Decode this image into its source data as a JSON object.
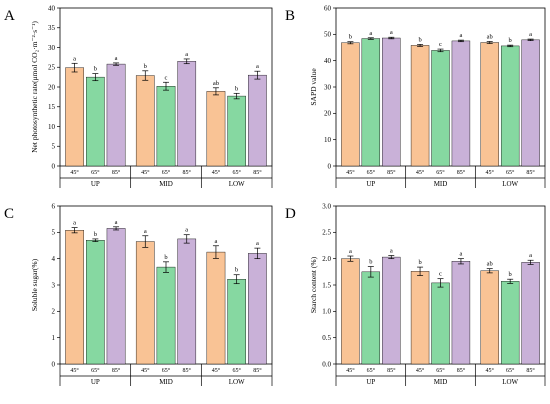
{
  "colors": {
    "45°": "#F9C395",
    "65°": "#86D8A1",
    "85°": "#C9B1D8",
    "axis": "#000000"
  },
  "chart_data": [
    {
      "id": "A",
      "panel_label": "A",
      "type": "bar",
      "ylabel": "Net photosynthetic rate(μmol CO₂·m⁻²·s⁻¹)",
      "ylim": [
        0,
        40
      ],
      "yticks": [
        0,
        5,
        10,
        15,
        20,
        25,
        30,
        35,
        40
      ],
      "groups": [
        "UP",
        "MID",
        "LOW"
      ],
      "categories": [
        "45°",
        "65°",
        "85°"
      ],
      "values": [
        [
          24.9,
          22.5,
          25.8
        ],
        [
          22.9,
          20.2,
          26.5
        ],
        [
          18.9,
          17.7,
          23.0
        ]
      ],
      "errors": [
        [
          1.1,
          0.9,
          0.3
        ],
        [
          1.2,
          1.0,
          0.6
        ],
        [
          0.9,
          0.7,
          1.0
        ]
      ],
      "letters": [
        [
          "a",
          "b",
          "a"
        ],
        [
          "b",
          "c",
          "a"
        ],
        [
          "ab",
          "b",
          "a"
        ]
      ],
      "grid": false
    },
    {
      "id": "B",
      "panel_label": "B",
      "type": "bar",
      "ylabel": "SAPD value",
      "ylim": [
        0,
        60
      ],
      "yticks": [
        0,
        10,
        20,
        30,
        40,
        50,
        60
      ],
      "groups": [
        "UP",
        "MID",
        "LOW"
      ],
      "categories": [
        "45°",
        "65°",
        "85°"
      ],
      "values": [
        [
          46.8,
          48.4,
          48.6
        ],
        [
          45.8,
          43.9,
          47.5
        ],
        [
          46.9,
          45.6,
          47.9
        ]
      ],
      "errors": [
        [
          0.4,
          0.3,
          0.3
        ],
        [
          0.4,
          0.5,
          0.3
        ],
        [
          0.4,
          0.3,
          0.3
        ]
      ],
      "letters": [
        [
          "b",
          "a",
          "a"
        ],
        [
          "b",
          "c",
          "a"
        ],
        [
          "ab",
          "b",
          "a"
        ]
      ],
      "grid": false
    },
    {
      "id": "C",
      "panel_label": "C",
      "type": "bar",
      "ylabel": "Soluble sugar(%)",
      "ylim": [
        0,
        6
      ],
      "yticks": [
        0,
        1,
        2,
        3,
        4,
        5,
        6
      ],
      "groups": [
        "UP",
        "MID",
        "LOW"
      ],
      "categories": [
        "45°",
        "65°",
        "85°"
      ],
      "values": [
        [
          5.08,
          4.7,
          5.15
        ],
        [
          4.65,
          3.68,
          4.75
        ],
        [
          4.25,
          3.22,
          4.2
        ]
      ],
      "errors": [
        [
          0.1,
          0.05,
          0.06
        ],
        [
          0.22,
          0.2,
          0.16
        ],
        [
          0.24,
          0.17,
          0.2
        ]
      ],
      "letters": [
        [
          "a",
          "b",
          "a"
        ],
        [
          "a",
          "b",
          "a"
        ],
        [
          "a",
          "b",
          "a"
        ]
      ],
      "grid": false
    },
    {
      "id": "D",
      "panel_label": "D",
      "type": "bar",
      "ylabel": "Starch content (%)",
      "ylim": [
        0,
        3.0
      ],
      "yticks": [
        0.0,
        0.5,
        1.0,
        1.5,
        2.0,
        2.5,
        3.0
      ],
      "ytick_labels": [
        "0.0",
        "0.5",
        "1.0",
        "1.5",
        "2.0",
        "2.5",
        "3.0"
      ],
      "groups": [
        "UP",
        "MID",
        "LOW"
      ],
      "categories": [
        "45°",
        "65°",
        "85°"
      ],
      "values": [
        [
          2.0,
          1.75,
          2.03
        ],
        [
          1.76,
          1.54,
          1.95
        ],
        [
          1.77,
          1.57,
          1.93
        ]
      ],
      "errors": [
        [
          0.05,
          0.1,
          0.03
        ],
        [
          0.08,
          0.08,
          0.05
        ],
        [
          0.04,
          0.04,
          0.04
        ]
      ],
      "letters": [
        [
          "a",
          "b",
          "a"
        ],
        [
          "b",
          "c",
          "a"
        ],
        [
          "ab",
          "b",
          "a"
        ]
      ],
      "grid": false
    }
  ]
}
